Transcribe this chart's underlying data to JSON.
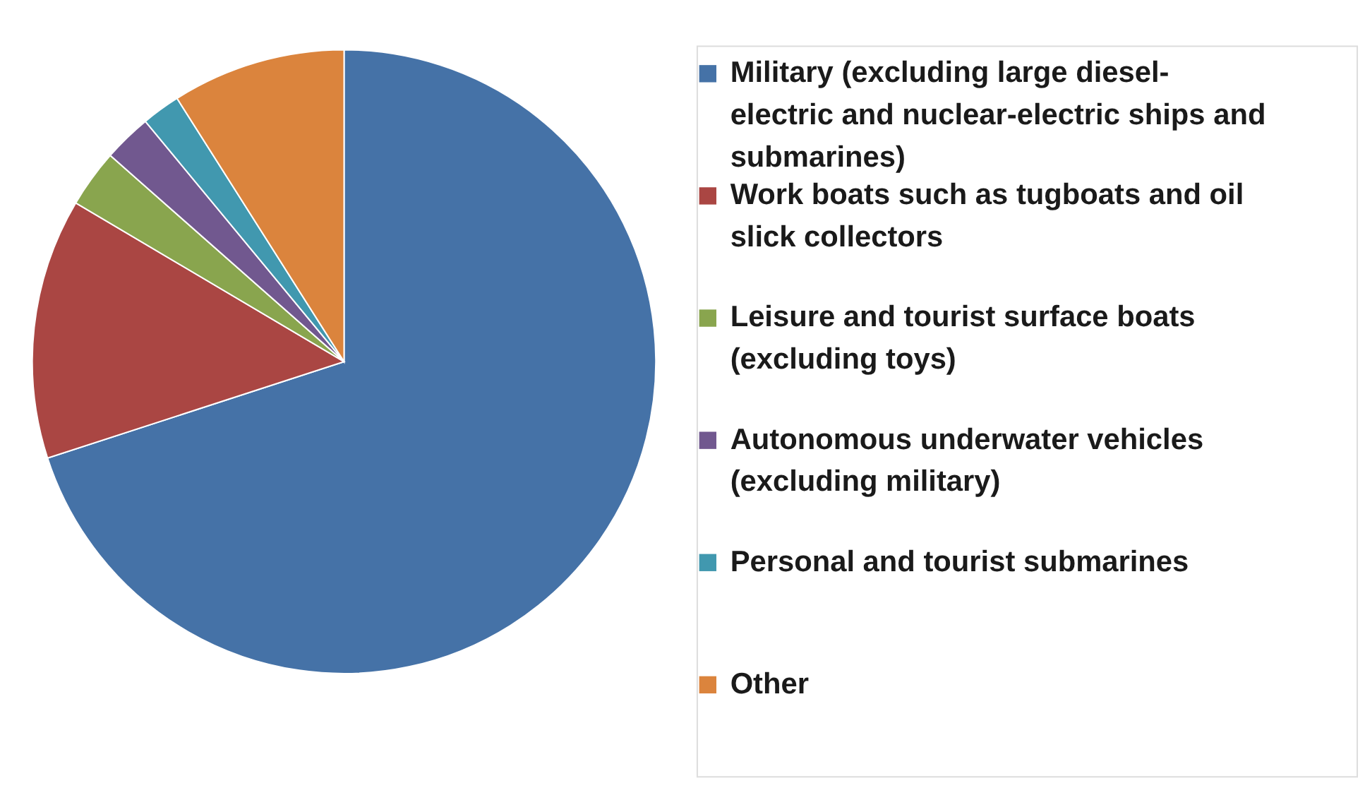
{
  "chart_data": {
    "type": "pie",
    "categories": [
      "Military (excluding large diesel-electric and nuclear-electric ships and submarines)",
      "Work boats such as tugboats and oil slick collectors",
      "Leisure and tourist surface boats (excluding toys)",
      "Autonomous underwater vehicles (excluding military)",
      "Personal and tourist submarines",
      "Other"
    ],
    "values": [
      70,
      13.5,
      3,
      2.5,
      2,
      9
    ],
    "colors": [
      "#4572a7",
      "#aa4643",
      "#89a54e",
      "#71588f",
      "#4198af",
      "#db843d"
    ],
    "legend": "right"
  }
}
